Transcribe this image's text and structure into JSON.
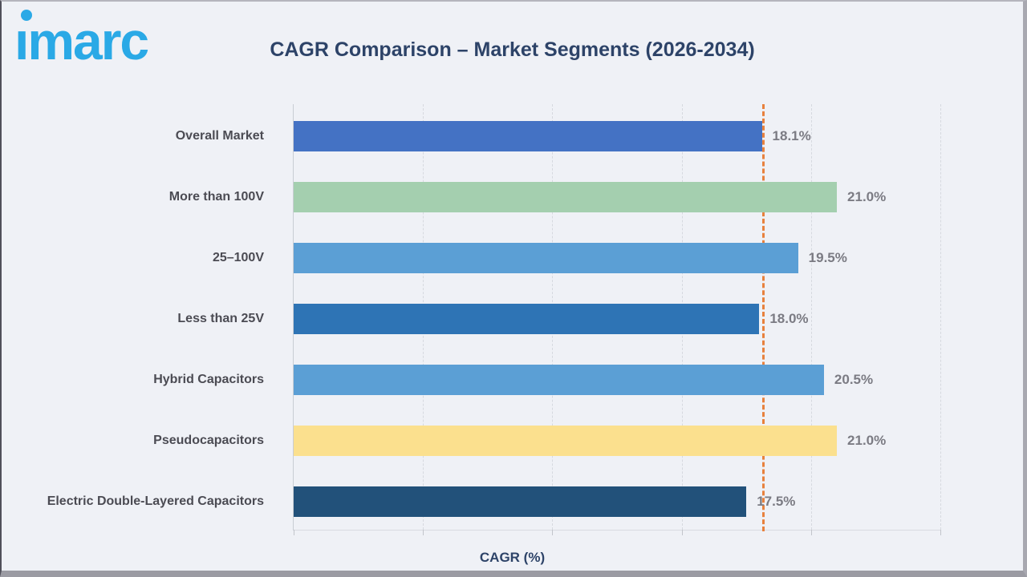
{
  "logo": {
    "text": "imarc",
    "color": "#2AA9E6"
  },
  "header": {
    "title": "CAGR Comparison – Market Segments (2026-2034)"
  },
  "chart_data": {
    "type": "bar",
    "orientation": "horizontal",
    "title": "CAGR Comparison – Market Segments (2026-2034)",
    "xlabel": "CAGR (%)",
    "categories": [
      "Overall Market",
      "More than 100V",
      "25–100V",
      "Less than 25V",
      "Hybrid Capacitors",
      "Pseudocapacitors",
      "Electric Double-Layered Capacitors"
    ],
    "values": [
      18.1,
      21.0,
      19.5,
      18.0,
      20.5,
      21.0,
      17.5
    ],
    "value_labels": [
      "18.1%",
      "21.0%",
      "19.5%",
      "18.0%",
      "20.5%",
      "21.0%",
      "17.5%"
    ],
    "bar_colors": [
      "#4472C4",
      "#A4CFAF",
      "#5B9FD5",
      "#2E74B5",
      "#5B9FD5",
      "#FBE08E",
      "#22517A"
    ],
    "xlim": [
      0,
      25
    ],
    "gridline_step": 5,
    "grid": "dashed-vertical-gridlines",
    "gridline_color": "#D6D9DF",
    "reference_line": {
      "value": 18.1,
      "color": "#E8813D",
      "style": "dashed"
    },
    "legend": "none",
    "tick_labels_shown": false,
    "background_color": "#EFF1F6"
  }
}
